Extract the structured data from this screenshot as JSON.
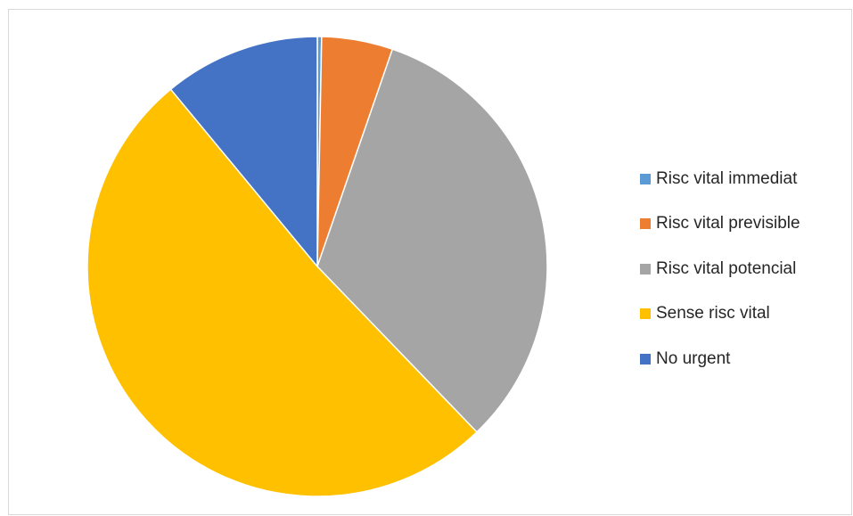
{
  "chart_data": {
    "type": "pie",
    "title": "",
    "legend_position": "right",
    "series": [
      {
        "name": "",
        "slices": [
          {
            "label": "Risc vital immediat",
            "value": 0.3,
            "color": "#5B9BD5"
          },
          {
            "label": "Risc vital previsible",
            "value": 5.0,
            "color": "#ED7D31"
          },
          {
            "label": "Risc vital potencial",
            "value": 32.5,
            "color": "#A5A5A5"
          },
          {
            "label": "Sense risc vital",
            "value": 51.2,
            "color": "#FFC000"
          },
          {
            "label": "No urgent",
            "value": 11.0,
            "color": "#4472C4"
          }
        ]
      }
    ]
  }
}
